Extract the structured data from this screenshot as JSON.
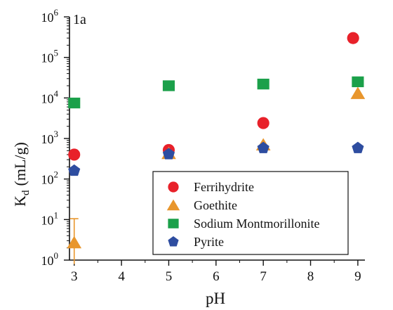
{
  "chart_data": {
    "type": "scatter",
    "panel_label": "1a",
    "xlabel": "pH",
    "ylabel": "K",
    "ylabel_sub": "d",
    "ylabel_units": "(mL/g)",
    "xlim": [
      2.9,
      9.15
    ],
    "ylim": [
      1,
      1000000
    ],
    "yscale": "log",
    "x_ticks": [
      3,
      4,
      5,
      6,
      7,
      8,
      9
    ],
    "x_tick_labels": [
      "3",
      "4",
      "5",
      "6",
      "7",
      "8",
      "9"
    ],
    "y_ticks": [
      1,
      10,
      100,
      1000,
      10000,
      100000,
      1000000
    ],
    "y_tick_base": "10",
    "y_tick_exponents": [
      "0",
      "1",
      "2",
      "3",
      "4",
      "5",
      "6"
    ],
    "grid": false,
    "legend_position": "bottom-right",
    "series": [
      {
        "name": "Ferrihydrite",
        "marker": "circle",
        "color": "#e8212a",
        "points": [
          {
            "x": 3,
            "y": 400
          },
          {
            "x": 5,
            "y": 520
          },
          {
            "x": 7,
            "y": 2400
          },
          {
            "x": 8.9,
            "y": 300000
          }
        ]
      },
      {
        "name": "Goethite",
        "marker": "triangle",
        "color": "#e8962d",
        "points": [
          {
            "x": 3,
            "y": 2.7,
            "err_low": 0.8,
            "err_high": 10.5
          },
          {
            "x": 5,
            "y": 430
          },
          {
            "x": 7,
            "y": 700
          },
          {
            "x": 9,
            "y": 13000
          }
        ]
      },
      {
        "name": "Sodium Montmorillonite",
        "marker": "square",
        "color": "#1ba04a",
        "points": [
          {
            "x": 3,
            "y": 7500
          },
          {
            "x": 5,
            "y": 20000
          },
          {
            "x": 7,
            "y": 22000
          },
          {
            "x": 9,
            "y": 25000
          }
        ]
      },
      {
        "name": "Pyrite",
        "marker": "pentagon",
        "color": "#2e4da0",
        "points": [
          {
            "x": 3,
            "y": 160
          },
          {
            "x": 5,
            "y": 410
          },
          {
            "x": 7,
            "y": 580
          },
          {
            "x": 9,
            "y": 580
          }
        ]
      }
    ]
  }
}
